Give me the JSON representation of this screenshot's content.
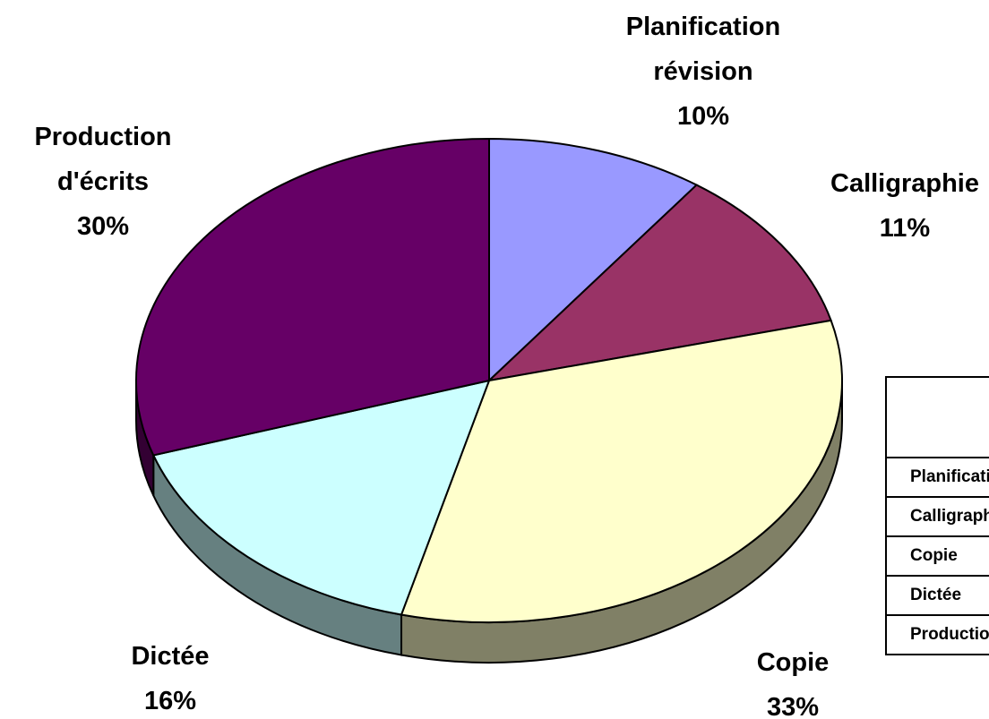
{
  "chart_data": {
    "type": "pie3d",
    "categories": [
      "Planification révision",
      "Calligraphie",
      "Copie",
      "Dictée",
      "Production d'écrits"
    ],
    "values": [
      10,
      11,
      33,
      16,
      30
    ],
    "value_labels": [
      "10%",
      "11%",
      "33%",
      "16%",
      "30%"
    ],
    "colors": [
      "#9999ff",
      "#993366",
      "#ffffcc",
      "#ccffff",
      "#660066"
    ]
  }
}
